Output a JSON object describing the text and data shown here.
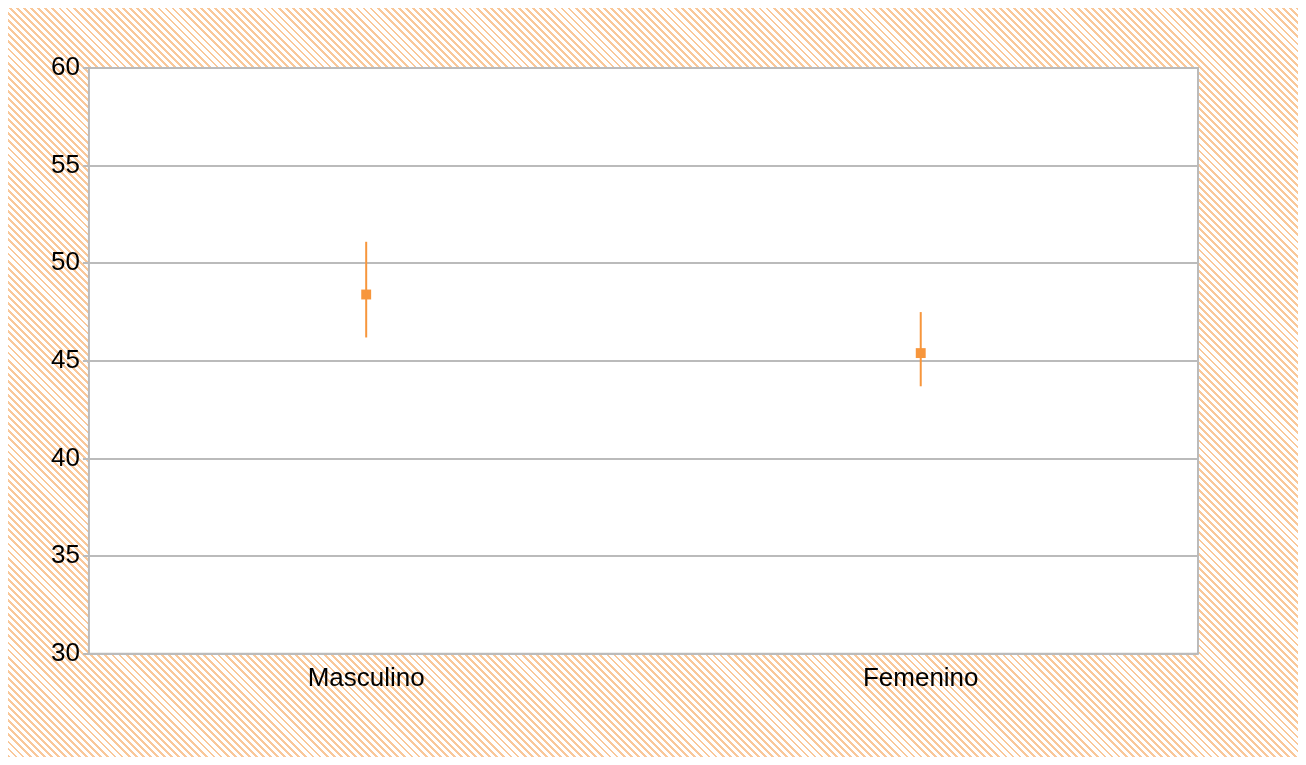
{
  "chart_data": {
    "type": "scatter",
    "categories": [
      "Masculino",
      "Femenino"
    ],
    "series": [
      {
        "color": "#f7963c",
        "values": [
          48.4,
          45.4
        ],
        "errors": [
          [
            46.2,
            51.1
          ],
          [
            43.7,
            47.5
          ]
        ]
      }
    ],
    "ylim": [
      30,
      60
    ],
    "yticks": [
      30,
      35,
      40,
      45,
      50,
      55,
      60
    ],
    "grid": "y",
    "legend": false,
    "marker": "square"
  }
}
